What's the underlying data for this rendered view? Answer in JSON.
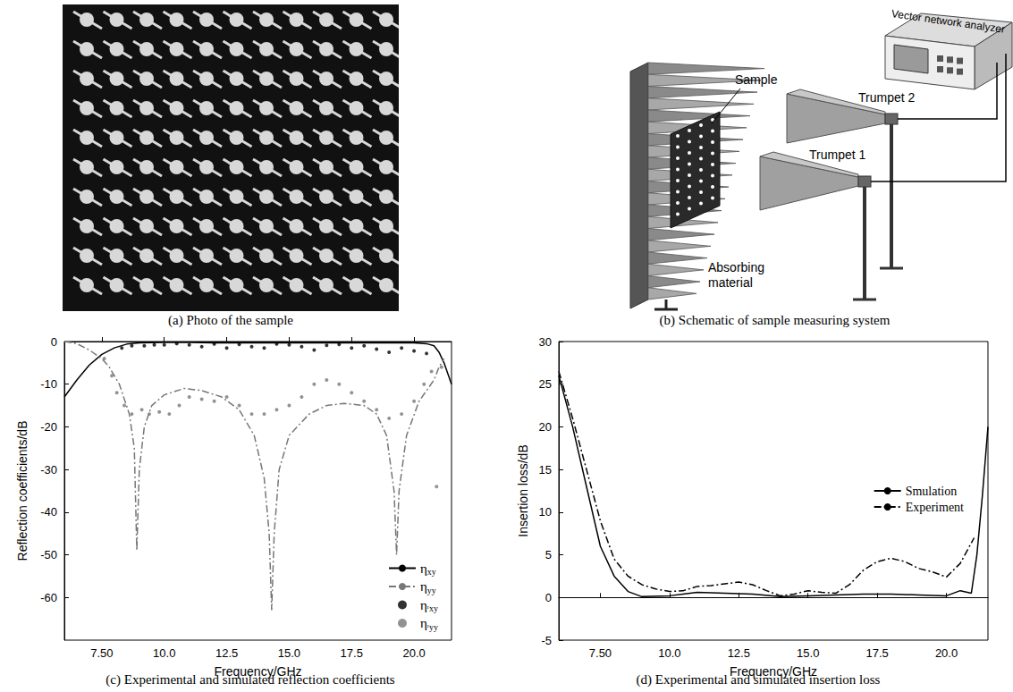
{
  "photo": {
    "caption": "(a) Photo of the sample"
  },
  "schematic": {
    "caption": "(b) Schematic of sample measuring system",
    "labels": {
      "analyzer": "Vector network analyzer",
      "sample": "Sample",
      "horn2": "Trumpet 2",
      "horn1": "Trumpet 1",
      "absorber": "Absorbing material"
    }
  },
  "chart_data": [
    {
      "type": "line",
      "title": "(c) Experimental and simulated reflection coefficients",
      "xlabel": "Frequency/GHz",
      "ylabel": "Reflection coefficients/dB",
      "xlim": [
        6,
        21.5
      ],
      "xticks": [
        {
          "value": 7.5,
          "label": "7.50"
        },
        {
          "value": 10,
          "label": "10.0"
        },
        12.5,
        {
          "value": 15,
          "label": "15.0"
        },
        17.5,
        {
          "value": 20,
          "label": "20.0"
        }
      ],
      "ylim": [
        -70,
        0
      ],
      "yticks": [
        -60,
        -50,
        -40,
        -30,
        -20,
        -10,
        0
      ],
      "grid": false,
      "legend": "lower right",
      "series": [
        {
          "name": "ηxy",
          "type": "line",
          "line_style": "solid",
          "color": "#000000",
          "x": [
            6,
            6.5,
            7,
            7.5,
            8,
            8.5,
            9,
            10,
            11,
            12,
            13,
            14,
            15,
            16,
            17,
            18,
            19,
            20,
            20.5,
            20.8,
            21,
            21.2,
            21.5
          ],
          "values": [
            -13,
            -9,
            -5.5,
            -3,
            -1.5,
            -0.6,
            -0.3,
            -0.2,
            -0.2,
            -0.3,
            -0.3,
            -0.3,
            -0.3,
            -0.3,
            -0.3,
            -0.3,
            -0.3,
            -0.3,
            -0.5,
            -1,
            -2.5,
            -5,
            -10
          ]
        },
        {
          "name": "ηyy",
          "type": "line",
          "line_style": "dashdot",
          "color": "#777777",
          "x": [
            6,
            6.5,
            7,
            7.5,
            7.8,
            8.2,
            8.6,
            8.8,
            8.9,
            9.0,
            9.2,
            9.5,
            10,
            10.8,
            11.5,
            12.3,
            13,
            13.6,
            14,
            14.2,
            14.3,
            14.4,
            14.6,
            15,
            15.8,
            16.5,
            17.2,
            18,
            18.5,
            18.9,
            19.2,
            19.3,
            19.4,
            19.7,
            20.2,
            20.8,
            21,
            21.2
          ],
          "values": [
            0,
            -0.5,
            -2,
            -4,
            -6,
            -10,
            -17,
            -25,
            -49,
            -30,
            -20,
            -15,
            -12.5,
            -11,
            -11.5,
            -13,
            -16,
            -22,
            -32,
            -45,
            -63,
            -45,
            -30,
            -22,
            -17,
            -15,
            -14.5,
            -15,
            -17,
            -22,
            -35,
            -50,
            -35,
            -22,
            -14,
            -9,
            -6,
            -4
          ]
        },
        {
          "name": "ηʳxy",
          "type": "scatter",
          "marker": "circle",
          "color": "#000000",
          "x": [
            8.3,
            8.7,
            9.2,
            9.6,
            10,
            10.5,
            11,
            11.5,
            12,
            12.5,
            13,
            13.5,
            14,
            14.5,
            15,
            15.5,
            16,
            16.5,
            17,
            17.5,
            18,
            18.5,
            19,
            19.5,
            20,
            20.5
          ],
          "values": [
            -1.5,
            -1,
            -1,
            -0.8,
            -0.8,
            -0.5,
            -0.8,
            -1.2,
            -0.6,
            -1.5,
            -0.7,
            -1.2,
            -1.5,
            -0.6,
            -0.8,
            -1.2,
            -2,
            -0.9,
            -0.7,
            -1.5,
            -1,
            -1.8,
            -2.5,
            -1.5,
            -2.2,
            -2.8
          ]
        },
        {
          "name": "ηʳyy",
          "type": "scatter",
          "marker": "circle",
          "color": "#777777",
          "x": [
            7.6,
            7.9,
            8.1,
            8.4,
            8.7,
            9.1,
            9.4,
            9.8,
            10.2,
            10.6,
            11,
            11.5,
            12,
            12.5,
            13,
            13.5,
            14,
            14.5,
            15,
            15.5,
            16,
            16.5,
            17,
            17.5,
            18,
            18.5,
            19,
            19.5,
            20,
            20.4,
            20.7,
            20.9,
            21.1
          ],
          "values": [
            -4,
            -8,
            -12,
            -15,
            -17,
            -16,
            -17,
            -16.5,
            -17,
            -15,
            -13,
            -13.5,
            -14,
            -13,
            -15,
            -17,
            -17,
            -16,
            -15,
            -13,
            -10,
            -9,
            -10,
            -12,
            -14,
            -16,
            -18,
            -17,
            -14,
            -10,
            -7,
            -34,
            -6
          ]
        }
      ]
    },
    {
      "type": "line",
      "title": "(d) Experimental and simulated insertion loss",
      "xlabel": "Frequency/GHz",
      "ylabel": "Insertion loss/dB",
      "xlim": [
        6,
        21.5
      ],
      "xticks": [
        {
          "value": 7.5,
          "label": "7.50"
        },
        {
          "value": 10,
          "label": "10.0"
        },
        12.5,
        {
          "value": 15,
          "label": "15.0"
        },
        17.5,
        {
          "value": 20,
          "label": "20.0"
        }
      ],
      "ylim": [
        -5,
        30
      ],
      "yticks": [
        -5,
        0,
        5,
        10,
        15,
        20,
        25,
        30
      ],
      "grid": false,
      "legend": "upper right",
      "series": [
        {
          "name": "Smulation",
          "type": "line",
          "line_style": "solid",
          "color": "#000000",
          "x": [
            6,
            6.5,
            7,
            7.5,
            8,
            8.5,
            9,
            10,
            11,
            12,
            13,
            14,
            15,
            16,
            17,
            18,
            19,
            20,
            20.5,
            20.9,
            21.1,
            21.3,
            21.5
          ],
          "values": [
            26,
            20,
            13,
            6,
            2.5,
            0.7,
            0.1,
            0.2,
            0.6,
            0.5,
            0.4,
            0.1,
            0.2,
            0.3,
            0.4,
            0.4,
            0.3,
            0.2,
            0.8,
            0.5,
            5,
            12,
            20
          ]
        },
        {
          "name": "Experiment",
          "type": "line",
          "line_style": "dashdot",
          "color": "#000000",
          "x": [
            6,
            6.5,
            7,
            7.5,
            8,
            8.5,
            9,
            9.5,
            10,
            10.5,
            11,
            11.5,
            12,
            12.5,
            13,
            13.5,
            14,
            14.5,
            15,
            15.5,
            16,
            16.5,
            17,
            17.5,
            18,
            18.5,
            19,
            19.5,
            20,
            20.5,
            21
          ],
          "values": [
            26.5,
            21,
            15,
            9,
            4.5,
            2.5,
            1.5,
            1,
            0.7,
            0.8,
            1.3,
            1.4,
            1.6,
            1.8,
            1.5,
            0.8,
            0.2,
            0.4,
            0.8,
            0.6,
            0.5,
            1.5,
            3.2,
            4.2,
            4.6,
            4.2,
            3.4,
            3,
            2.4,
            4,
            7
          ]
        }
      ]
    }
  ]
}
